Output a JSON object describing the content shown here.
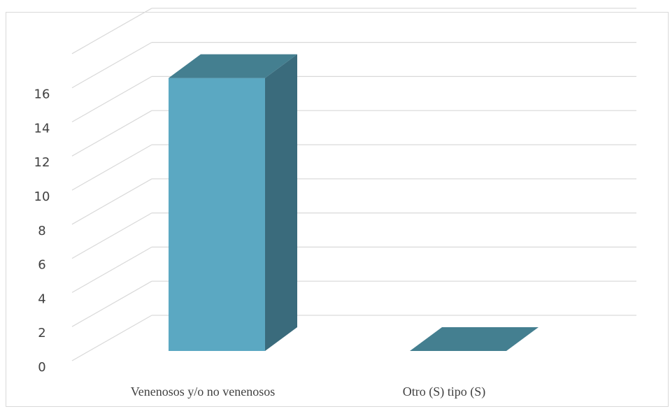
{
  "chart_data": {
    "type": "bar",
    "style": "3d-column",
    "categories": [
      "Venenosos y/o no venenosos",
      "Otro (S) tipo (S)"
    ],
    "values": [
      16,
      0
    ],
    "ylim": [
      0,
      16
    ],
    "y_ticks": [
      "0",
      "2",
      "4",
      "6",
      "8",
      "10",
      "12",
      "14",
      "16"
    ],
    "title": "",
    "xlabel": "",
    "ylabel": "",
    "grid": true,
    "colors": {
      "bar_front": "#5ba8c2",
      "bar_side": "#3a6b7c",
      "bar_top": "#447f90",
      "gridline": "#d9d9d9",
      "text": "#404040"
    }
  }
}
